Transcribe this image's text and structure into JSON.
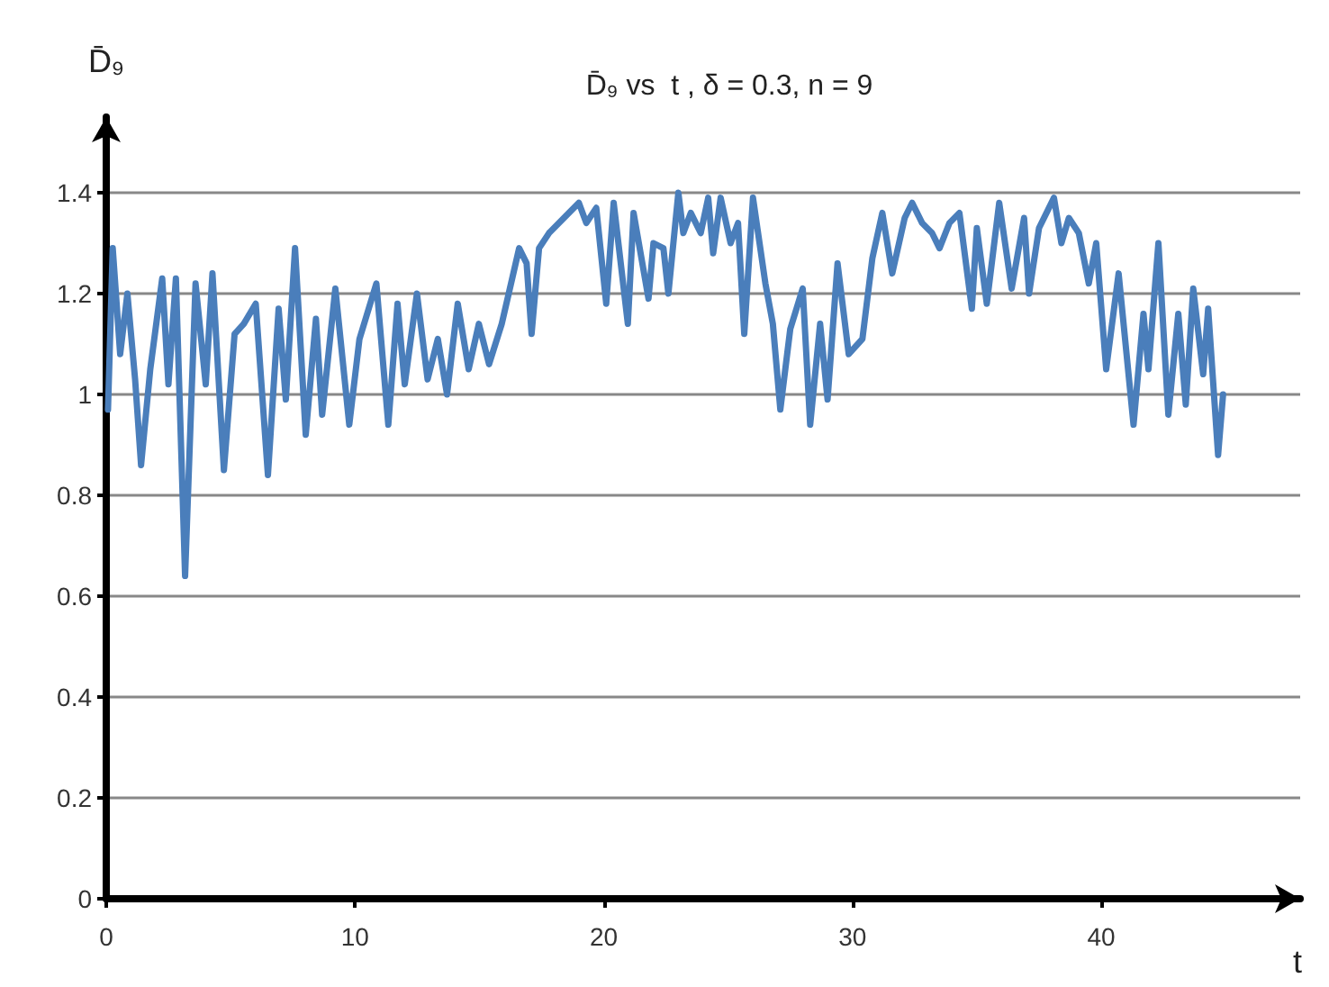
{
  "chart_data": {
    "type": "line",
    "title": "D̄₉ vs  t , δ = 0.3, n = 9",
    "xlabel": "t",
    "ylabel": "D̄₉",
    "x": [
      0.07,
      0.26,
      0.56,
      0.85,
      1.16,
      1.4,
      1.77,
      2.25,
      2.5,
      2.8,
      3.17,
      3.59,
      4.0,
      4.27,
      4.73,
      5.16,
      5.53,
      6.01,
      6.5,
      6.93,
      7.22,
      7.59,
      8.02,
      8.43,
      8.68,
      9.21,
      9.77,
      10.18,
      10.86,
      11.34,
      11.71,
      12.0,
      12.49,
      12.92,
      13.33,
      13.7,
      14.13,
      14.57,
      14.98,
      15.39,
      15.9,
      16.6,
      16.9,
      17.1,
      17.4,
      17.8,
      18.4,
      19.0,
      19.3,
      19.7,
      20.1,
      20.4,
      20.97,
      21.2,
      21.8,
      22.0,
      22.4,
      22.6,
      23.0,
      23.2,
      23.5,
      23.9,
      24.2,
      24.4,
      24.7,
      25.1,
      25.4,
      25.65,
      26.0,
      26.5,
      26.8,
      27.1,
      27.5,
      28.0,
      28.3,
      28.7,
      29.0,
      29.4,
      29.85,
      30.4,
      30.8,
      31.2,
      31.6,
      32.1,
      32.4,
      32.8,
      33.2,
      33.5,
      33.9,
      34.3,
      34.8,
      35.0,
      35.4,
      35.9,
      36.4,
      36.9,
      37.1,
      37.5,
      38.1,
      38.4,
      38.7,
      39.1,
      39.5,
      39.8,
      40.2,
      40.7,
      41.3,
      41.7,
      41.9,
      42.3,
      42.7,
      43.1,
      43.4,
      43.7,
      44.1,
      44.3,
      44.7,
      44.9
    ],
    "series": [
      {
        "color": "#4a7ebb",
        "values": [
          0.97,
          1.29,
          1.08,
          1.2,
          1.03,
          0.86,
          1.05,
          1.23,
          1.02,
          1.23,
          0.64,
          1.22,
          1.02,
          1.24,
          0.85,
          1.12,
          1.14,
          1.18,
          0.84,
          1.17,
          0.99,
          1.29,
          0.92,
          1.15,
          0.96,
          1.21,
          0.94,
          1.11,
          1.22,
          0.94,
          1.18,
          1.02,
          1.2,
          1.03,
          1.11,
          1.0,
          1.18,
          1.05,
          1.14,
          1.06,
          1.14,
          1.29,
          1.26,
          1.12,
          1.29,
          1.32,
          1.35,
          1.38,
          1.34,
          1.37,
          1.18,
          1.38,
          1.14,
          1.36,
          1.19,
          1.3,
          1.29,
          1.2,
          1.4,
          1.32,
          1.36,
          1.32,
          1.39,
          1.28,
          1.39,
          1.3,
          1.34,
          1.12,
          1.39,
          1.22,
          1.14,
          0.97,
          1.13,
          1.21,
          0.94,
          1.14,
          0.99,
          1.26,
          1.08,
          1.11,
          1.27,
          1.36,
          1.24,
          1.35,
          1.38,
          1.34,
          1.32,
          1.29,
          1.34,
          1.36,
          1.17,
          1.33,
          1.18,
          1.38,
          1.21,
          1.35,
          1.2,
          1.33,
          1.39,
          1.3,
          1.35,
          1.32,
          1.22,
          1.3,
          1.05,
          1.24,
          0.94,
          1.16,
          1.05,
          1.3,
          0.96,
          1.16,
          0.98,
          1.21,
          1.04,
          1.17,
          0.88,
          1.0
        ]
      }
    ],
    "xlim": [
      0,
      48
    ],
    "xticks": [
      0,
      10,
      20,
      30,
      40
    ],
    "ylim": [
      0,
      1.55
    ],
    "yticks": [
      0,
      0.2,
      0.4,
      0.6,
      0.8,
      1,
      1.2,
      1.4
    ],
    "grid": "y",
    "marker": "none",
    "line_style": "solid"
  }
}
